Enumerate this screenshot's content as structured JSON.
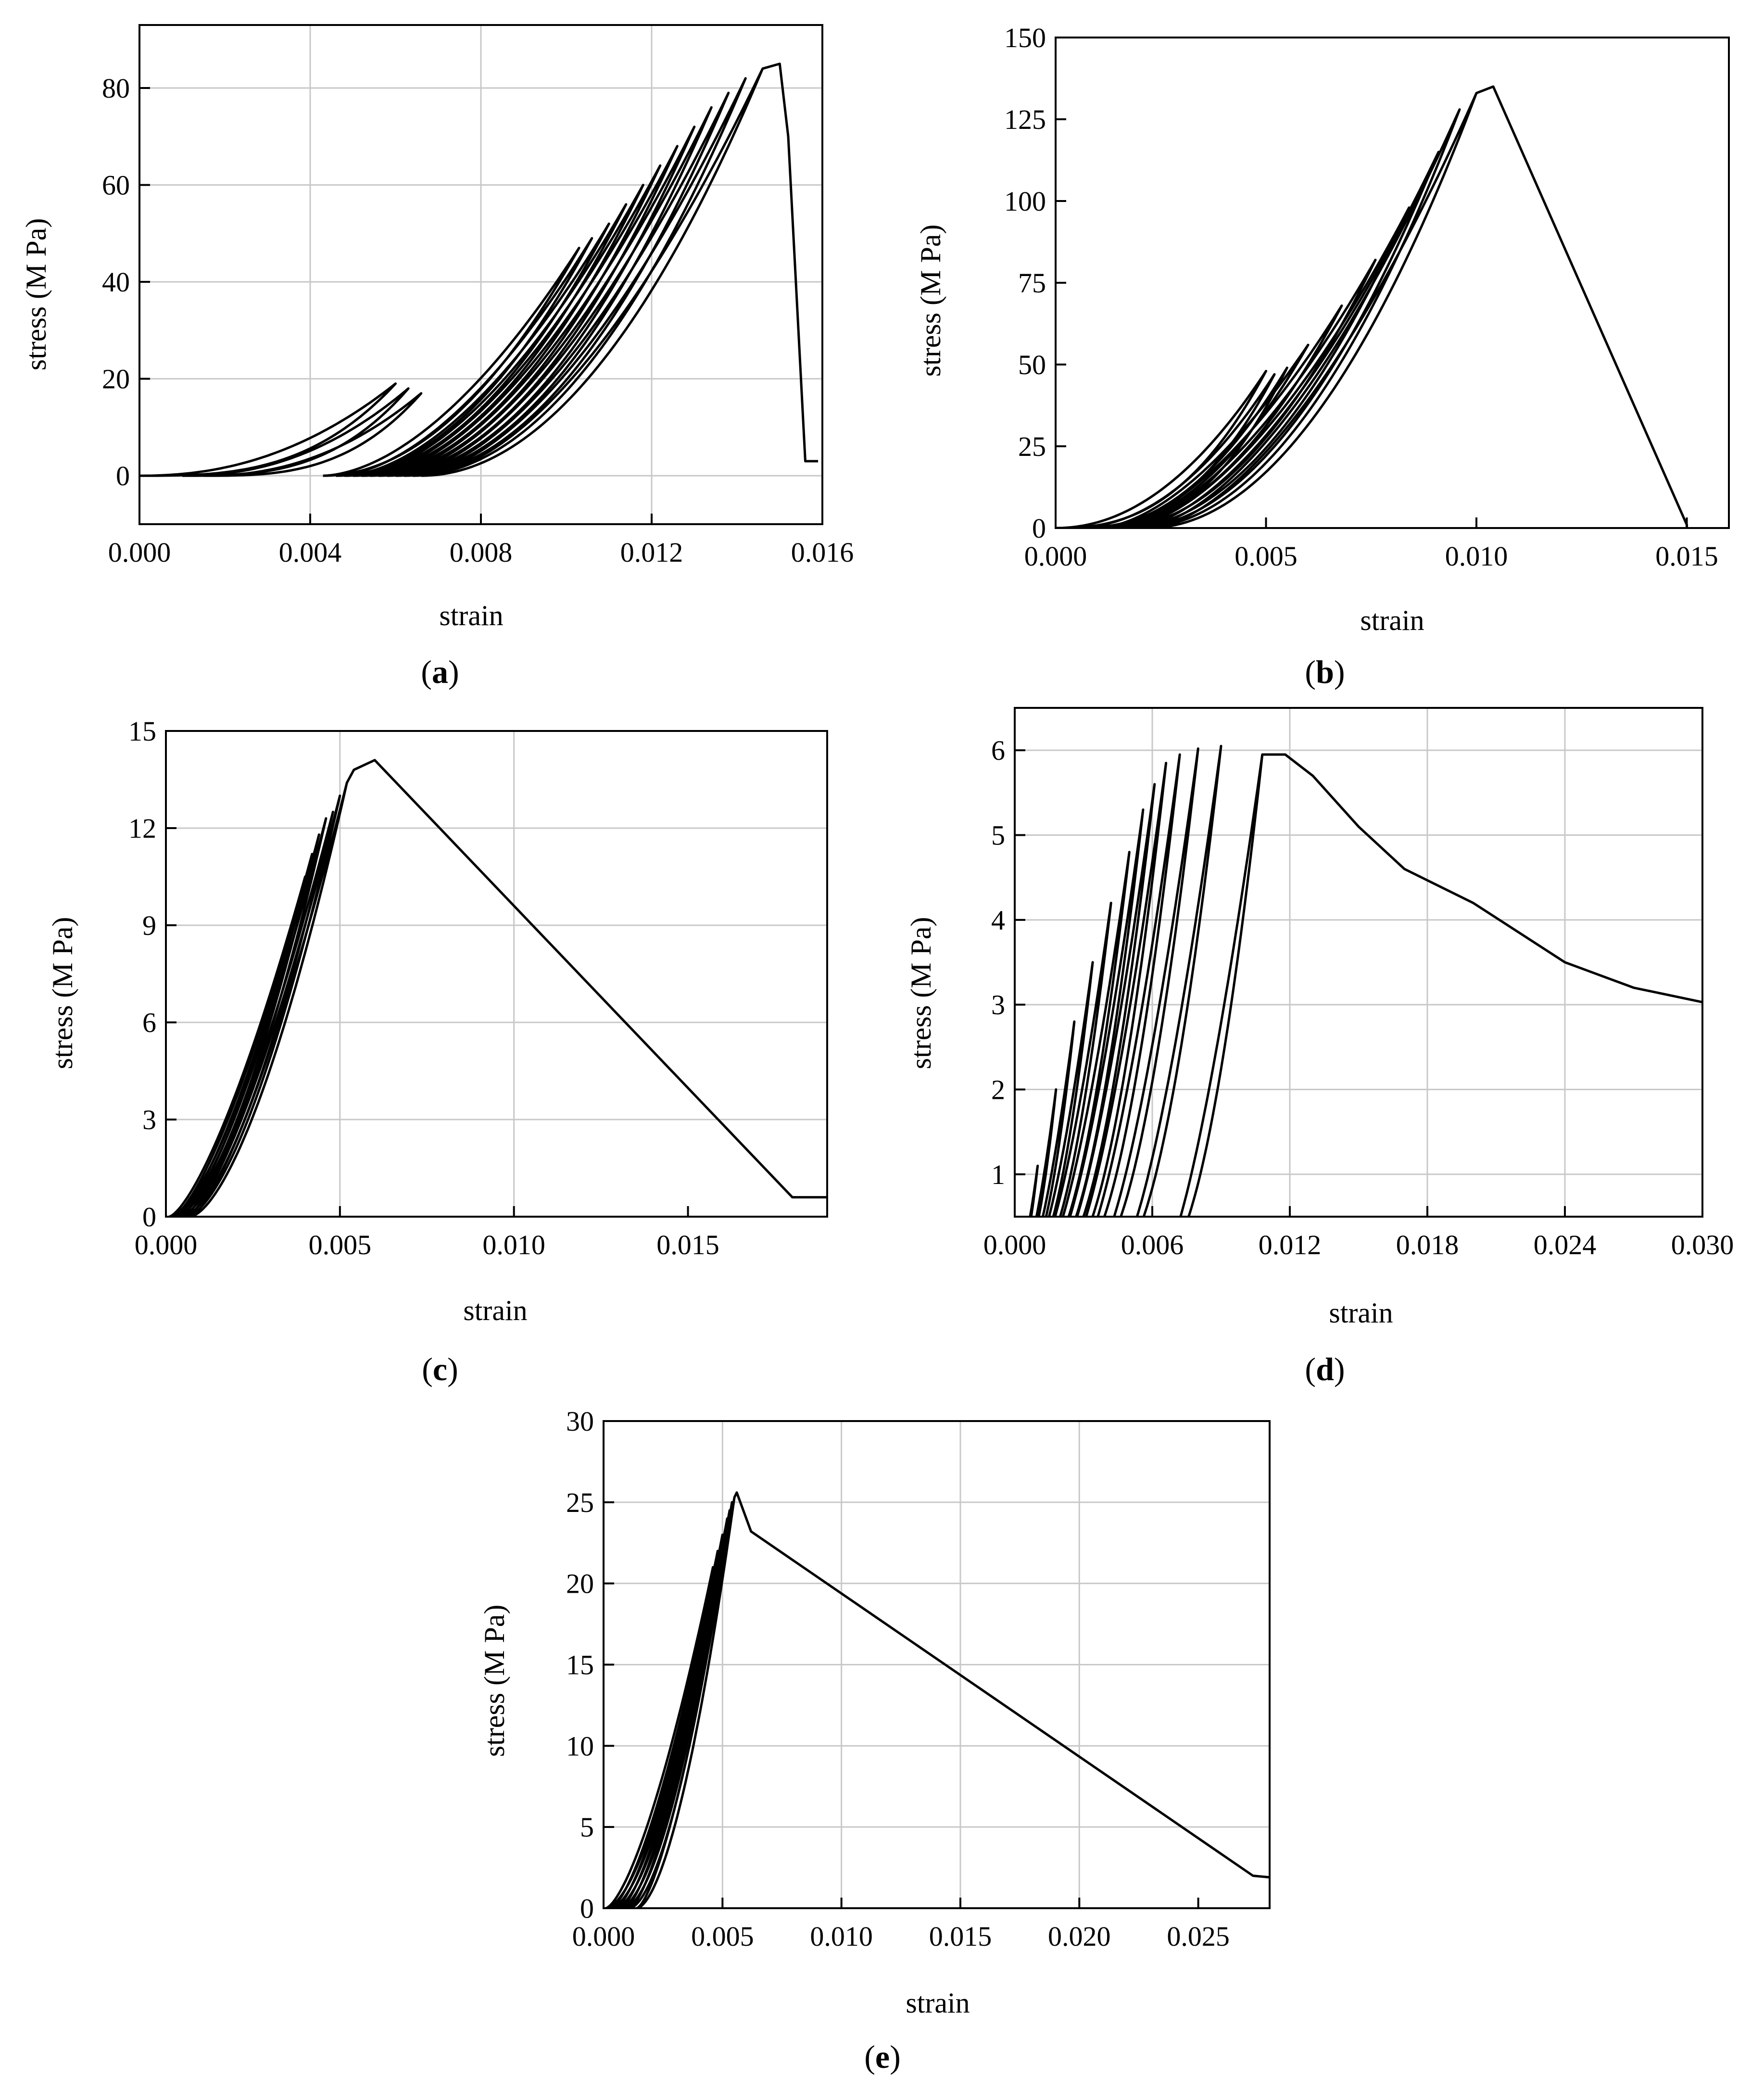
{
  "figure": {
    "captions": [
      {
        "open": "(",
        "letter": "a",
        "close": ")"
      },
      {
        "open": "(",
        "letter": "b",
        "close": ")"
      },
      {
        "open": "(",
        "letter": "c",
        "close": ")"
      },
      {
        "open": "(",
        "letter": "d",
        "close": ")"
      },
      {
        "open": "(",
        "letter": "e",
        "close": ")"
      }
    ]
  },
  "chart_data": [
    {
      "id": "a",
      "type": "line",
      "title": "",
      "xlabel": "strain",
      "ylabel": "stress (M Pa)",
      "xlim": [
        0,
        0.016
      ],
      "ylim": [
        -10,
        93
      ],
      "xticks": [
        0,
        0.004,
        0.008,
        0.012,
        0.016
      ],
      "xtick_labels": [
        "0.000",
        "0.004",
        "0.008",
        "0.012",
        "0.016"
      ],
      "yticks": [
        0,
        20,
        40,
        60,
        80
      ],
      "ytick_labels": [
        "0",
        "20",
        "40",
        "60",
        "80"
      ],
      "grid": true,
      "cycles": [
        {
          "x0": 0.0,
          "xp": 0.006,
          "yp": 19,
          "b": 3.0,
          "a": 0.6
        },
        {
          "x0": 0.001,
          "xp": 0.0063,
          "yp": 18,
          "b": 3.0,
          "a": 0.6
        },
        {
          "x0": 0.0015,
          "xp": 0.0066,
          "yp": 17,
          "b": 3.0,
          "a": 0.6
        },
        {
          "x0": 0.0043,
          "xp": 0.0103,
          "yp": 47,
          "b": 2.0,
          "a": 0.75
        },
        {
          "x0": 0.0046,
          "xp": 0.0106,
          "yp": 49,
          "b": 2.0,
          "a": 0.75
        },
        {
          "x0": 0.0048,
          "xp": 0.011,
          "yp": 52,
          "b": 2.0,
          "a": 0.75
        },
        {
          "x0": 0.005,
          "xp": 0.0114,
          "yp": 56,
          "b": 2.0,
          "a": 0.75
        },
        {
          "x0": 0.0052,
          "xp": 0.0118,
          "yp": 60,
          "b": 2.0,
          "a": 0.75
        },
        {
          "x0": 0.0054,
          "xp": 0.0122,
          "yp": 64,
          "b": 2.0,
          "a": 0.75
        },
        {
          "x0": 0.0056,
          "xp": 0.0126,
          "yp": 68,
          "b": 2.0,
          "a": 0.75
        },
        {
          "x0": 0.0058,
          "xp": 0.013,
          "yp": 72,
          "b": 2.0,
          "a": 0.75
        },
        {
          "x0": 0.006,
          "xp": 0.0134,
          "yp": 76,
          "b": 2.0,
          "a": 0.75
        },
        {
          "x0": 0.0062,
          "xp": 0.0138,
          "yp": 79,
          "b": 2.0,
          "a": 0.75
        },
        {
          "x0": 0.0064,
          "xp": 0.0142,
          "yp": 82,
          "b": 2.0,
          "a": 0.75
        },
        {
          "x0": 0.0066,
          "xp": 0.0146,
          "yp": 84,
          "b": 2.0,
          "a": 0.75
        }
      ],
      "tail": [
        [
          0.0146,
          84
        ],
        [
          0.015,
          85
        ],
        [
          0.0152,
          70
        ],
        [
          0.0156,
          3
        ],
        [
          0.0159,
          3
        ]
      ]
    },
    {
      "id": "b",
      "type": "line",
      "title": "",
      "xlabel": "strain",
      "ylabel": "stress (M Pa)",
      "xlim": [
        0,
        0.016
      ],
      "ylim": [
        0,
        150
      ],
      "xticks": [
        0,
        0.005,
        0.01,
        0.015
      ],
      "xtick_labels": [
        "0.000",
        "0.005",
        "0.010",
        "0.015"
      ],
      "yticks": [
        0,
        25,
        50,
        75,
        100,
        125,
        150
      ],
      "ytick_labels": [
        "0",
        "25",
        "50",
        "75",
        "100",
        "125",
        "150"
      ],
      "grid": false,
      "cycles": [
        {
          "x0": 0.0,
          "xp": 0.005,
          "yp": 48,
          "b": 2.5,
          "a": 0.7
        },
        {
          "x0": 0.0004,
          "xp": 0.0052,
          "yp": 47,
          "b": 2.5,
          "a": 0.7
        },
        {
          "x0": 0.0008,
          "xp": 0.0055,
          "yp": 49,
          "b": 2.5,
          "a": 0.7
        },
        {
          "x0": 0.001,
          "xp": 0.006,
          "yp": 56,
          "b": 2.0,
          "a": 0.7
        },
        {
          "x0": 0.0012,
          "xp": 0.0068,
          "yp": 68,
          "b": 2.0,
          "a": 0.7
        },
        {
          "x0": 0.0014,
          "xp": 0.0076,
          "yp": 82,
          "b": 2.0,
          "a": 0.7
        },
        {
          "x0": 0.0016,
          "xp": 0.0084,
          "yp": 98,
          "b": 2.0,
          "a": 0.7
        },
        {
          "x0": 0.0018,
          "xp": 0.0091,
          "yp": 115,
          "b": 2.0,
          "a": 0.7
        },
        {
          "x0": 0.002,
          "xp": 0.0096,
          "yp": 128,
          "b": 2.0,
          "a": 0.7
        },
        {
          "x0": 0.0022,
          "xp": 0.01,
          "yp": 133,
          "b": 2.0,
          "a": 0.7
        }
      ],
      "tail": [
        [
          0.01,
          133
        ],
        [
          0.0104,
          135
        ],
        [
          0.015,
          1
        ],
        [
          0.015,
          0
        ]
      ]
    },
    {
      "id": "c",
      "type": "line",
      "title": "",
      "xlabel": "strain",
      "ylabel": "stress (M Pa)",
      "xlim": [
        0,
        0.019
      ],
      "ylim": [
        0,
        15
      ],
      "xticks": [
        0,
        0.005,
        0.01,
        0.015
      ],
      "xtick_labels": [
        "0.000",
        "0.005",
        "0.010",
        "0.015"
      ],
      "yticks": [
        0,
        3,
        6,
        9,
        12,
        15
      ],
      "ytick_labels": [
        "0",
        "3",
        "6",
        "9",
        "12",
        "15"
      ],
      "grid": true,
      "cycles": [
        {
          "x0": 0.0001,
          "xp": 0.004,
          "yp": 10.5,
          "b": 1.6,
          "a": 0.7
        },
        {
          "x0": 0.0002,
          "xp": 0.0042,
          "yp": 11.2,
          "b": 1.6,
          "a": 0.7
        },
        {
          "x0": 0.0003,
          "xp": 0.0044,
          "yp": 11.8,
          "b": 1.6,
          "a": 0.7
        },
        {
          "x0": 0.0004,
          "xp": 0.0046,
          "yp": 12.3,
          "b": 1.6,
          "a": 0.7
        },
        {
          "x0": 0.0005,
          "xp": 0.0048,
          "yp": 12.5,
          "b": 1.6,
          "a": 0.7
        },
        {
          "x0": 0.0006,
          "xp": 0.005,
          "yp": 13.0,
          "b": 1.6,
          "a": 0.7
        },
        {
          "x0": 0.0007,
          "xp": 0.0052,
          "yp": 13.4,
          "b": 1.6,
          "a": 0.7
        }
      ],
      "tail": [
        [
          0.0052,
          13.4
        ],
        [
          0.0054,
          13.8
        ],
        [
          0.006,
          14.1
        ],
        [
          0.018,
          0.6
        ],
        [
          0.019,
          0.6
        ]
      ]
    },
    {
      "id": "d",
      "type": "line",
      "title": "",
      "xlabel": "strain",
      "ylabel": "stress (M Pa)",
      "xlim": [
        0,
        0.03
      ],
      "ylim": [
        0.5,
        6.5
      ],
      "xticks": [
        0,
        0.006,
        0.012,
        0.018,
        0.024,
        0.03
      ],
      "xtick_labels": [
        "0.000",
        "0.006",
        "0.012",
        "0.018",
        "0.024",
        "0.030"
      ],
      "yticks": [
        1,
        2,
        3,
        4,
        5,
        6
      ],
      "ytick_labels": [
        "1",
        "2",
        "3",
        "4",
        "5",
        "6"
      ],
      "grid": true,
      "cycles": [
        {
          "x0": 0.0002,
          "xp": 0.001,
          "yp": 1.1,
          "b": 1.8,
          "a": 0.6
        },
        {
          "x0": 0.0004,
          "xp": 0.0018,
          "yp": 2.0,
          "b": 1.8,
          "a": 0.6
        },
        {
          "x0": 0.0006,
          "xp": 0.0026,
          "yp": 2.8,
          "b": 1.8,
          "a": 0.6
        },
        {
          "x0": 0.0008,
          "xp": 0.0034,
          "yp": 3.5,
          "b": 1.8,
          "a": 0.6
        },
        {
          "x0": 0.001,
          "xp": 0.0042,
          "yp": 4.2,
          "b": 1.8,
          "a": 0.6
        },
        {
          "x0": 0.0013,
          "xp": 0.005,
          "yp": 4.8,
          "b": 1.8,
          "a": 0.6
        },
        {
          "x0": 0.0016,
          "xp": 0.0056,
          "yp": 5.3,
          "b": 1.8,
          "a": 0.6
        },
        {
          "x0": 0.0019,
          "xp": 0.0061,
          "yp": 5.6,
          "b": 1.8,
          "a": 0.6
        },
        {
          "x0": 0.0023,
          "xp": 0.0066,
          "yp": 5.85,
          "b": 1.8,
          "a": 0.6
        },
        {
          "x0": 0.0028,
          "xp": 0.0072,
          "yp": 5.95,
          "b": 1.8,
          "a": 0.6
        },
        {
          "x0": 0.0035,
          "xp": 0.008,
          "yp": 6.02,
          "b": 1.8,
          "a": 0.6
        },
        {
          "x0": 0.0045,
          "xp": 0.009,
          "yp": 6.05,
          "b": 1.8,
          "a": 0.6
        },
        {
          "x0": 0.0065,
          "xp": 0.0108,
          "yp": 5.95,
          "b": 1.8,
          "a": 0.5
        }
      ],
      "tail": [
        [
          0.0108,
          5.95
        ],
        [
          0.0118,
          5.95
        ],
        [
          0.013,
          5.7
        ],
        [
          0.015,
          5.1
        ],
        [
          0.017,
          4.6
        ],
        [
          0.02,
          4.2
        ],
        [
          0.024,
          3.5
        ],
        [
          0.027,
          3.2
        ],
        [
          0.03,
          3.03
        ]
      ]
    },
    {
      "id": "e",
      "type": "line",
      "title": "",
      "xlabel": "strain",
      "ylabel": "stress (M Pa)",
      "xlim": [
        0,
        0.028
      ],
      "ylim": [
        0,
        30
      ],
      "xticks": [
        0,
        0.005,
        0.01,
        0.015,
        0.02,
        0.025
      ],
      "xtick_labels": [
        "0.000",
        "0.005",
        "0.010",
        "0.015",
        "0.020",
        "0.025"
      ],
      "yticks": [
        0,
        5,
        10,
        15,
        20,
        25,
        30
      ],
      "ytick_labels": [
        "0",
        "5",
        "10",
        "15",
        "20",
        "25",
        "30"
      ],
      "grid": true,
      "cycles": [
        {
          "x0": 0.0001,
          "xp": 0.0046,
          "yp": 21,
          "b": 1.7,
          "a": 0.7
        },
        {
          "x0": 0.0003,
          "xp": 0.0048,
          "yp": 22,
          "b": 1.7,
          "a": 0.7
        },
        {
          "x0": 0.0005,
          "xp": 0.005,
          "yp": 23,
          "b": 1.7,
          "a": 0.7
        },
        {
          "x0": 0.0007,
          "xp": 0.0052,
          "yp": 24,
          "b": 1.7,
          "a": 0.7
        },
        {
          "x0": 0.0009,
          "xp": 0.0053,
          "yp": 24.5,
          "b": 1.7,
          "a": 0.7
        },
        {
          "x0": 0.0011,
          "xp": 0.0054,
          "yp": 25,
          "b": 1.7,
          "a": 0.7
        },
        {
          "x0": 0.0014,
          "xp": 0.0055,
          "yp": 25.3,
          "b": 1.7,
          "a": 0.7
        }
      ],
      "tail": [
        [
          0.0055,
          25.3
        ],
        [
          0.0056,
          25.6
        ],
        [
          0.0062,
          23.2
        ],
        [
          0.0273,
          2.0
        ],
        [
          0.028,
          1.9
        ]
      ]
    }
  ]
}
